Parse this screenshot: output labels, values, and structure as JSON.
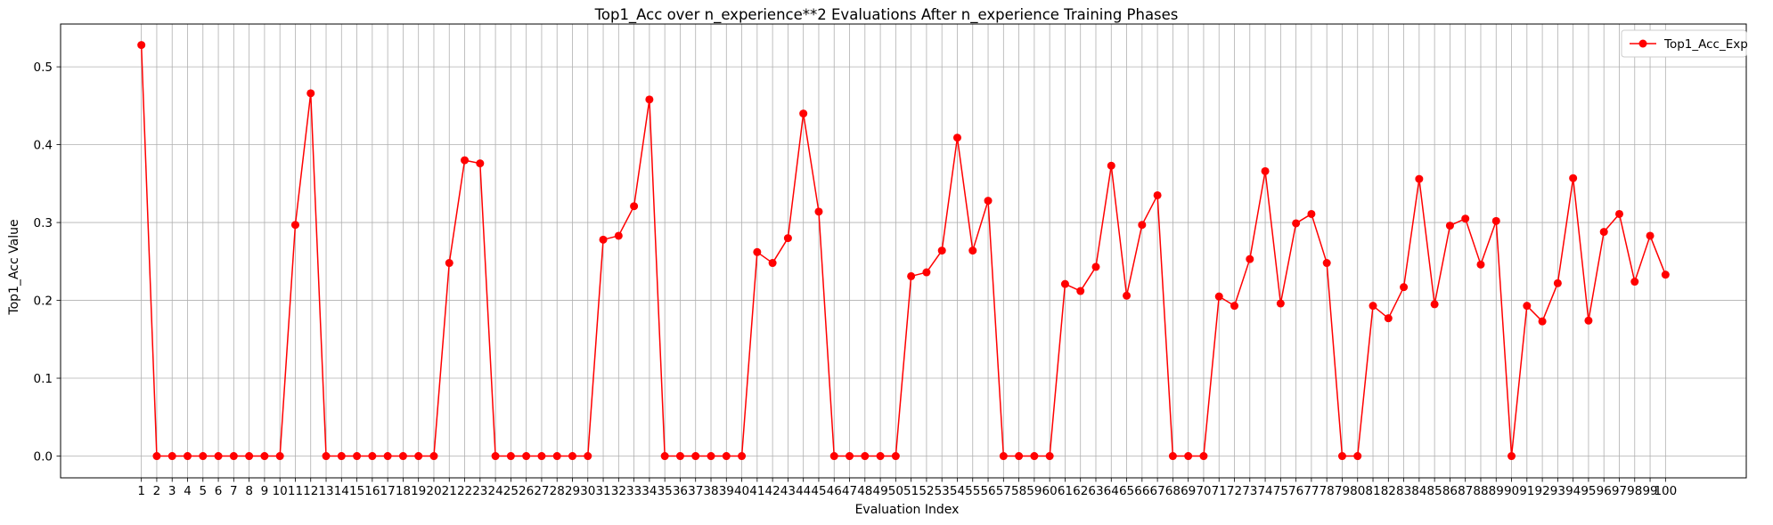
{
  "chart_data": {
    "type": "line",
    "title": "Top1_Acc over n_experience**2 Evaluations After n_experience Training Phases",
    "xlabel": "Evaluation Index",
    "ylabel": "Top1_Acc Value",
    "ylim": [
      -0.028,
      0.555
    ],
    "y_ticks": [
      "0.0",
      "0.1",
      "0.2",
      "0.3",
      "0.4",
      "0.5"
    ],
    "grid": true,
    "legend_position": "top-right",
    "series": [
      {
        "name": "Top1_Acc_Exp",
        "color": "#ff0000",
        "marker": "circle",
        "x": [
          1,
          2,
          3,
          4,
          5,
          6,
          7,
          8,
          9,
          10,
          11,
          12,
          13,
          14,
          15,
          16,
          17,
          18,
          19,
          20,
          21,
          22,
          23,
          24,
          25,
          26,
          27,
          28,
          29,
          30,
          31,
          32,
          33,
          34,
          35,
          36,
          37,
          38,
          39,
          40,
          41,
          42,
          43,
          44,
          45,
          46,
          47,
          48,
          49,
          50,
          51,
          52,
          53,
          54,
          55,
          56,
          57,
          58,
          59,
          60,
          61,
          62,
          63,
          64,
          65,
          66,
          67,
          68,
          69,
          70,
          71,
          72,
          73,
          74,
          75,
          76,
          77,
          78,
          79,
          80,
          81,
          82,
          83,
          84,
          85,
          86,
          87,
          88,
          89,
          90,
          91,
          92,
          93,
          94,
          95,
          96,
          97,
          98,
          99,
          100
        ],
        "values": [
          0.528,
          0,
          0,
          0,
          0,
          0,
          0,
          0,
          0,
          0,
          0.297,
          0.466,
          0,
          0,
          0,
          0,
          0,
          0,
          0,
          0,
          0.248,
          0.38,
          0.376,
          0,
          0,
          0,
          0,
          0,
          0,
          0,
          0.278,
          0.283,
          0.321,
          0.458,
          0,
          0,
          0,
          0,
          0,
          0,
          0.262,
          0.248,
          0.28,
          0.44,
          0.314,
          0,
          0,
          0,
          0,
          0,
          0.231,
          0.236,
          0.264,
          0.409,
          0.264,
          0.328,
          0,
          0,
          0,
          0,
          0.221,
          0.212,
          0.243,
          0.373,
          0.206,
          0.297,
          0.335,
          0,
          0,
          0,
          0.205,
          0.193,
          0.253,
          0.366,
          0.196,
          0.299,
          0.311,
          0.248,
          0,
          0,
          0.193,
          0.177,
          0.217,
          0.356,
          0.195,
          0.296,
          0.305,
          0.246,
          0.302,
          0,
          0.193,
          0.173,
          0.222,
          0.357,
          0.174,
          0.288,
          0.311,
          0.224,
          0.283,
          0.233
        ]
      }
    ]
  }
}
